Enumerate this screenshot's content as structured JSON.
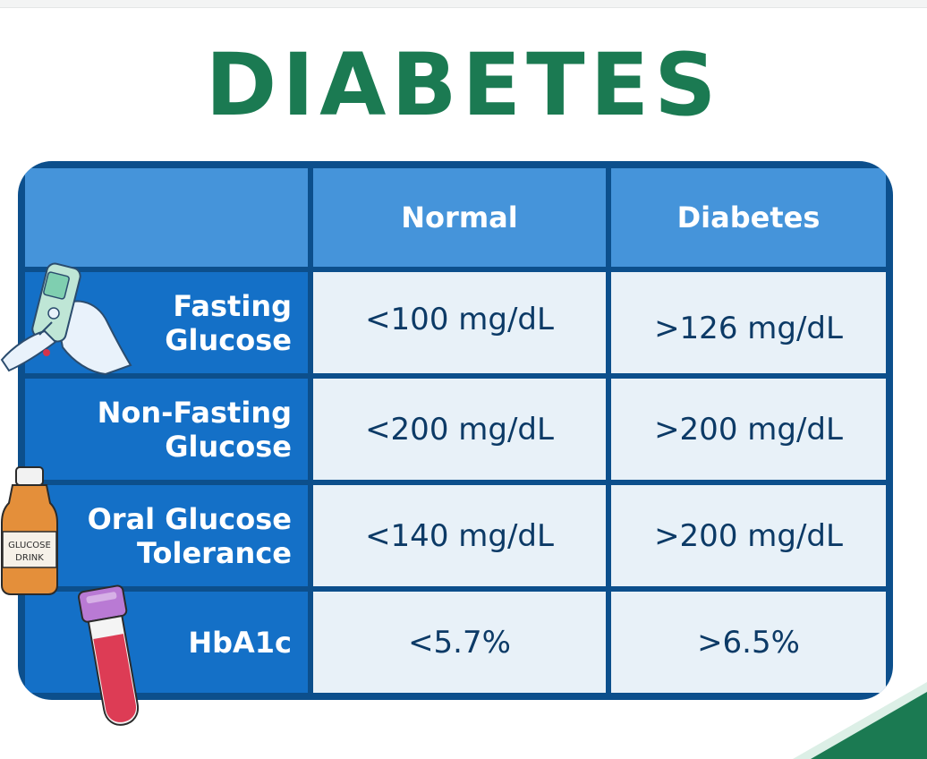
{
  "title": "DIABETES",
  "colors": {
    "title": "#1b7a52",
    "header": "#4594da",
    "row_header": "#1470c7",
    "border": "#0c4f8c",
    "cell": "#e8f1f8"
  },
  "table": {
    "columns": [
      "",
      "Normal",
      "Diabetes"
    ],
    "rows": [
      {
        "label": [
          "Fasting",
          "Glucose"
        ],
        "normal": "<100 mg/dL",
        "diabetes": ">126 mg/dL",
        "icon": "glucometer-icon"
      },
      {
        "label": [
          "Non-Fasting",
          "Glucose"
        ],
        "normal": "<200 mg/dL",
        "diabetes": ">200 mg/dL",
        "icon": ""
      },
      {
        "label": [
          "Oral Glucose",
          "Tolerance"
        ],
        "normal": "<140 mg/dL",
        "diabetes": ">200 mg/dL",
        "icon": "glucose-drink-bottle-icon"
      },
      {
        "label": [
          "HbA1c"
        ],
        "normal": "<5.7%",
        "diabetes": ">6.5%",
        "icon": "blood-tube-icon"
      }
    ]
  },
  "bottle_label": [
    "GLUCOSE",
    "DRINK"
  ]
}
